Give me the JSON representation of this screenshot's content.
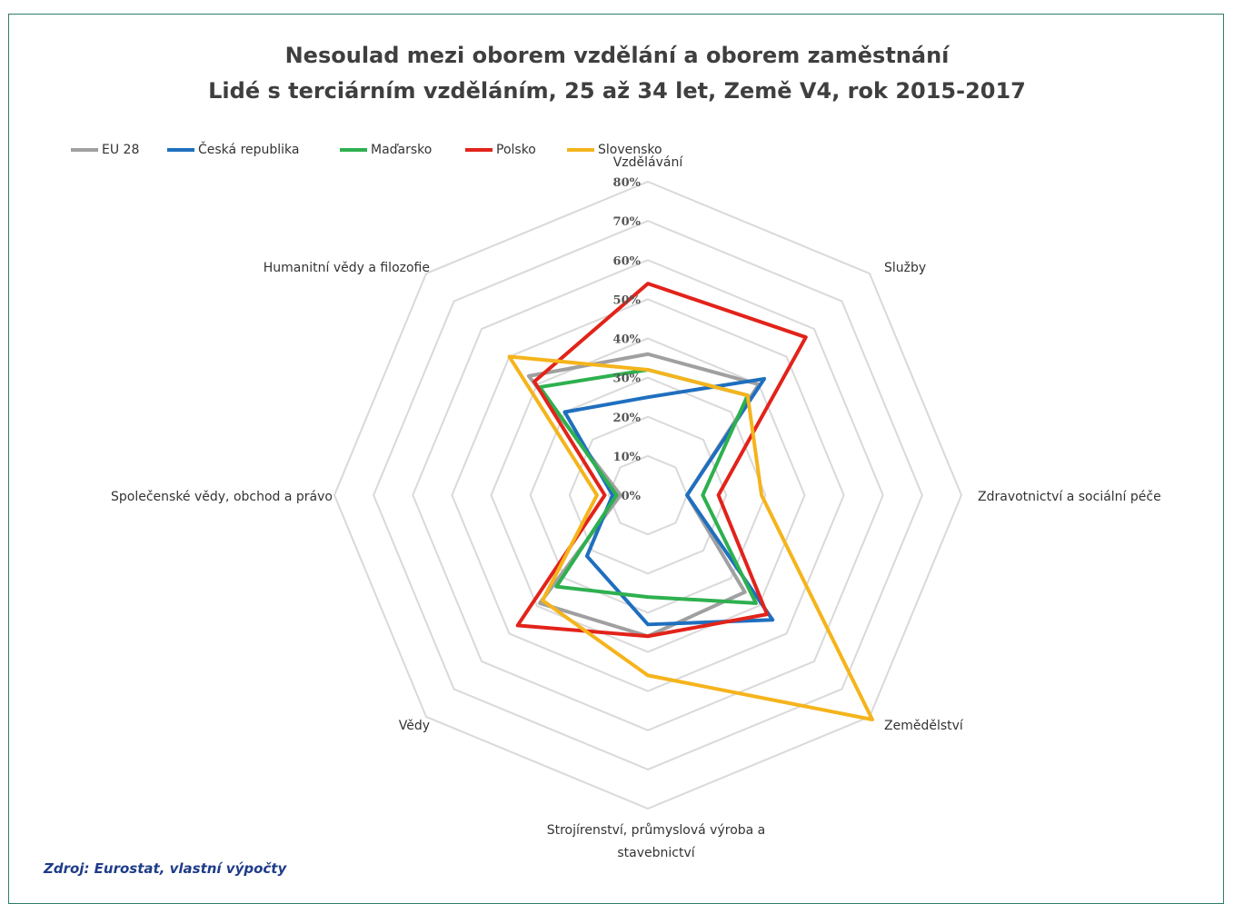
{
  "chart_data": {
    "type": "radar",
    "title": "Nesoulad mezi oborem vzdělání a oborem zaměstnání",
    "subtitle": "Lidé s terciárním vzděláním, 25 až 34 let, Země V4, rok 2015-2017",
    "categories": [
      "Vzdělávání",
      "Služby",
      "Zdravotnictví a sociální péče",
      "Zemědělství",
      "Strojírenství, průmyslová výroba a stavebnictví",
      "Vědy",
      "Společenské vědy, obchod a právo",
      "Humanitní vědy a filozofie"
    ],
    "ticks": [
      "0%",
      "10%",
      "20%",
      "30%",
      "40%",
      "50%",
      "60%",
      "70%",
      "80%"
    ],
    "rlim": [
      0,
      80
    ],
    "legend_position": "top-left",
    "series": [
      {
        "name": "EU 28",
        "color": "#a0a0a0",
        "values": [
          36,
          40,
          10,
          35,
          36,
          39,
          7,
          43
        ]
      },
      {
        "name": "Česká republika",
        "color": "#1f6fbf",
        "values": [
          25,
          42,
          10,
          45,
          33,
          22,
          9,
          30
        ]
      },
      {
        "name": "Maďarsko",
        "color": "#2eb04f",
        "values": [
          32,
          36,
          14,
          39,
          26,
          33,
          8,
          39
        ]
      },
      {
        "name": "Polsko",
        "color": "#e2231a",
        "values": [
          54,
          57,
          18,
          43,
          36,
          47,
          11,
          41
        ]
      },
      {
        "name": "Slovensko",
        "color": "#f5b41c",
        "values": [
          32,
          36,
          29,
          81,
          46,
          38,
          13,
          50
        ]
      }
    ]
  },
  "source": "Zdroj: Eurostat, vlastní výpočty"
}
